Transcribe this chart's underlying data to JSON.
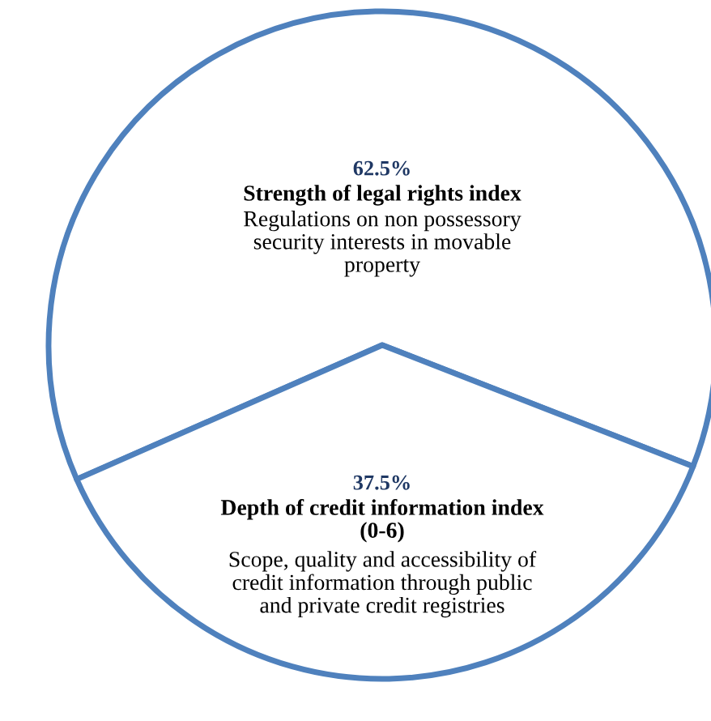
{
  "chart_data": {
    "type": "pie",
    "categories": [
      "Strength of legal rights index",
      "Depth of credit information index\n(0-6)"
    ],
    "values": [
      62.5,
      37.5
    ],
    "value_labels": [
      "62.5%",
      "37.5%"
    ],
    "colors": [
      "#ffffff",
      "#ffffff"
    ],
    "annotations": [
      "Regulations on non possessory\nsecurity interests in movable\nproperty",
      "Scope, quality and accessibility of\ncredit information through public\nand private credit registries"
    ]
  }
}
